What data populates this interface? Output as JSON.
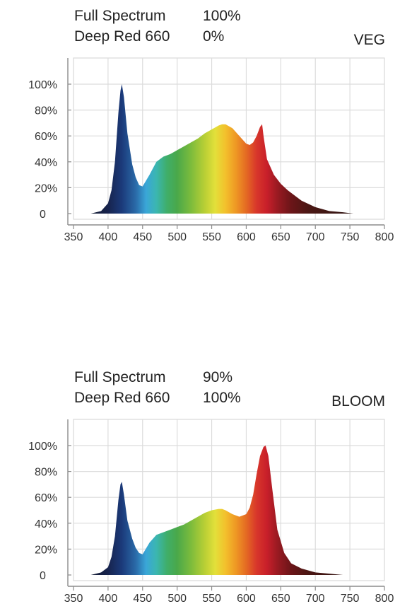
{
  "chart_data": [
    {
      "type": "area",
      "mode_label": "VEG",
      "settings": [
        {
          "label": "Full Spectrum",
          "value": "100%"
        },
        {
          "label": "Deep Red 660",
          "value": "0%"
        }
      ],
      "xlim": [
        350,
        800
      ],
      "ylim": [
        0,
        100
      ],
      "x_ticks": [
        350,
        400,
        450,
        500,
        550,
        600,
        650,
        700,
        750,
        800
      ],
      "y_tick_labels": [
        "0",
        "20%",
        "40%",
        "60%",
        "80%",
        "100%"
      ],
      "grid": true,
      "x": [
        375,
        390,
        400,
        405,
        410,
        415,
        418,
        420,
        423,
        428,
        435,
        440,
        445,
        450,
        460,
        470,
        480,
        490,
        500,
        510,
        520,
        530,
        540,
        550,
        560,
        565,
        570,
        580,
        590,
        600,
        605,
        610,
        615,
        620,
        623,
        625,
        630,
        640,
        650,
        660,
        670,
        680,
        700,
        720,
        740,
        755
      ],
      "y": [
        0,
        2,
        8,
        18,
        40,
        78,
        95,
        100,
        90,
        62,
        38,
        28,
        22,
        21,
        30,
        40,
        44,
        46,
        49,
        52,
        55,
        58,
        62,
        65,
        68,
        69,
        69,
        66,
        60,
        54,
        53,
        55,
        60,
        67,
        69,
        60,
        42,
        30,
        23,
        18,
        14,
        10,
        5,
        2,
        1,
        0
      ]
    },
    {
      "type": "area",
      "mode_label": "BLOOM",
      "settings": [
        {
          "label": "Full Spectrum",
          "value": "90%"
        },
        {
          "label": "Deep Red 660",
          "value": "100%"
        }
      ],
      "xlim": [
        350,
        800
      ],
      "ylim": [
        0,
        100
      ],
      "x_ticks": [
        350,
        400,
        450,
        500,
        550,
        600,
        650,
        700,
        750,
        800
      ],
      "y_tick_labels": [
        "0",
        "20%",
        "40%",
        "60%",
        "80%",
        "100%"
      ],
      "grid": true,
      "x": [
        375,
        390,
        400,
        405,
        410,
        415,
        418,
        420,
        423,
        428,
        435,
        440,
        445,
        450,
        460,
        470,
        480,
        490,
        500,
        510,
        520,
        530,
        540,
        550,
        560,
        565,
        570,
        580,
        590,
        600,
        605,
        610,
        615,
        620,
        625,
        628,
        632,
        638,
        645,
        655,
        665,
        680,
        700,
        720,
        740,
        765
      ],
      "y": [
        0,
        2,
        6,
        14,
        30,
        58,
        70,
        72,
        62,
        42,
        28,
        21,
        17,
        16,
        25,
        31,
        33,
        35,
        37,
        39,
        42,
        45,
        48,
        50,
        51,
        51,
        50,
        47,
        45,
        47,
        52,
        62,
        78,
        92,
        99,
        100,
        92,
        65,
        35,
        17,
        9,
        5,
        2,
        1,
        0,
        0
      ]
    }
  ]
}
